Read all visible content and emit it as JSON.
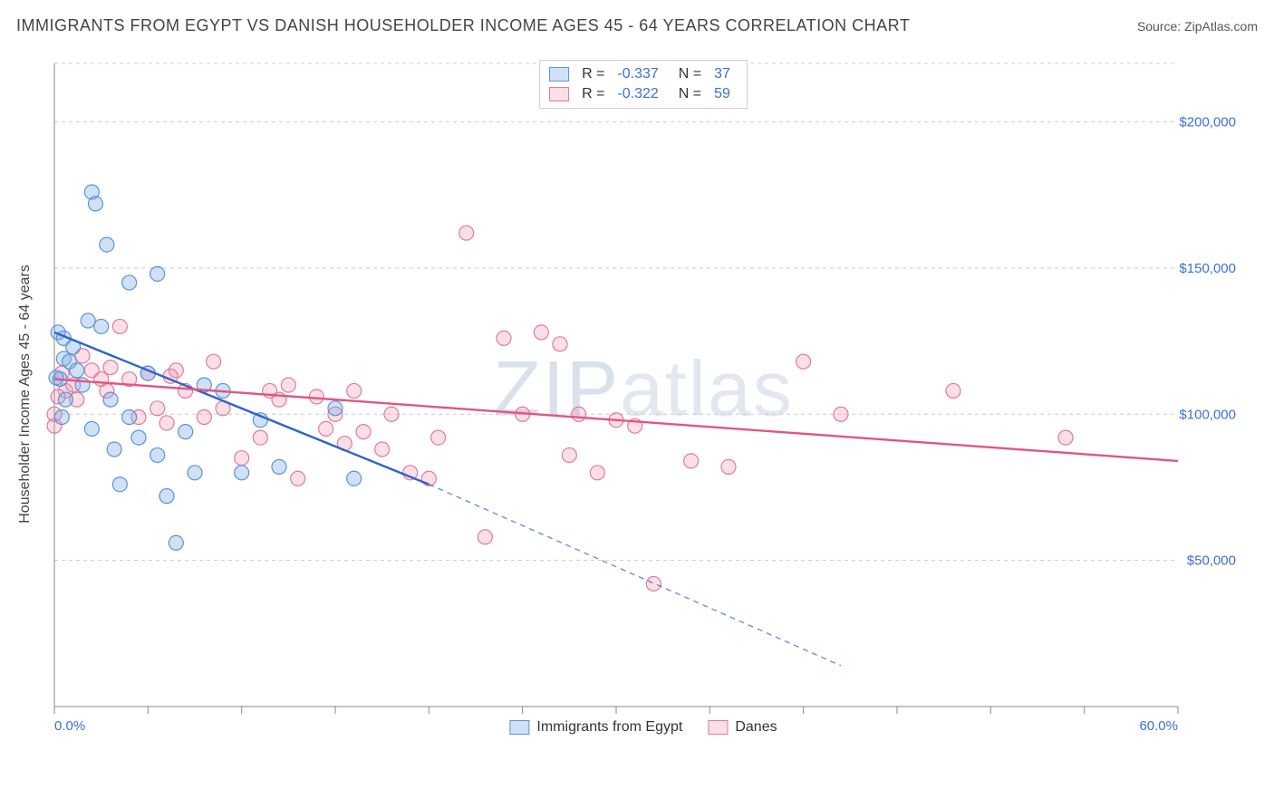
{
  "title": "IMMIGRANTS FROM EGYPT VS DANISH HOUSEHOLDER INCOME AGES 45 - 64 YEARS CORRELATION CHART",
  "source_label": "Source: ",
  "source_name": "ZipAtlas.com",
  "watermark": "ZIPatlas",
  "y_axis_label": "Householder Income Ages 45 - 64 years",
  "chart": {
    "type": "scatter",
    "x_domain": [
      0,
      60
    ],
    "y_domain": [
      0,
      220000
    ],
    "x_ticks_major": [
      0,
      5,
      10,
      15,
      20,
      25,
      30,
      35,
      40,
      45,
      50,
      55,
      60
    ],
    "x_tick_labels": {
      "0": "0.0%",
      "60": "60.0%"
    },
    "y_grid": [
      50000,
      100000,
      150000,
      200000
    ],
    "y_tick_labels": {
      "50000": "$50,000",
      "100000": "$100,000",
      "150000": "$150,000",
      "200000": "$200,000"
    },
    "background_color": "#ffffff",
    "grid_color": "#cccccc",
    "axis_color": "#888888",
    "tick_label_color": "#3b6fd8",
    "marker_radius": 8,
    "marker_stroke_width": 1.2,
    "trend_line_width": 2.4,
    "trend_dash": "6 5",
    "series": [
      {
        "key": "egypt",
        "label": "Immigrants from Egypt",
        "fill": "rgba(120,170,230,0.35)",
        "stroke": "#5a93d8",
        "line_color": "#2f63c9",
        "stats": {
          "R": "-0.337",
          "N": "37"
        },
        "trend": {
          "x1": 0,
          "y1": 128000,
          "x2_solid": 20,
          "y2_solid": 76000,
          "x2": 42,
          "y2": 14000
        },
        "points": [
          [
            0.2,
            128000
          ],
          [
            0.5,
            126000
          ],
          [
            0.5,
            119000
          ],
          [
            0.3,
            112000
          ],
          [
            0.8,
            118000
          ],
          [
            0.6,
            105000
          ],
          [
            0.4,
            99000
          ],
          [
            1.0,
            123000
          ],
          [
            1.2,
            115000
          ],
          [
            1.5,
            110000
          ],
          [
            1.8,
            132000
          ],
          [
            2.0,
            176000
          ],
          [
            2.2,
            172000
          ],
          [
            2.0,
            95000
          ],
          [
            2.5,
            130000
          ],
          [
            3.0,
            105000
          ],
          [
            3.2,
            88000
          ],
          [
            3.5,
            76000
          ],
          [
            4.0,
            145000
          ],
          [
            4.0,
            99000
          ],
          [
            4.5,
            92000
          ],
          [
            5.0,
            114000
          ],
          [
            5.5,
            148000
          ],
          [
            5.5,
            86000
          ],
          [
            6.0,
            72000
          ],
          [
            6.5,
            56000
          ],
          [
            7.0,
            94000
          ],
          [
            7.5,
            80000
          ],
          [
            8.0,
            110000
          ],
          [
            9.0,
            108000
          ],
          [
            10.0,
            80000
          ],
          [
            11.0,
            98000
          ],
          [
            12.0,
            82000
          ],
          [
            15.0,
            102000
          ],
          [
            16.0,
            78000
          ],
          [
            2.8,
            158000
          ],
          [
            0.1,
            112500
          ]
        ]
      },
      {
        "key": "danes",
        "label": "Danes",
        "fill": "rgba(240,150,175,0.30)",
        "stroke": "#e07b9a",
        "line_color": "#e25582",
        "stats": {
          "R": "-0.322",
          "N": "59"
        },
        "trend": {
          "x1": 0,
          "y1": 112000,
          "x2_solid": 60,
          "y2_solid": 84000,
          "x2": 60,
          "y2": 84000
        },
        "points": [
          [
            0.0,
            100000
          ],
          [
            0.4,
            114000
          ],
          [
            0.6,
            108000
          ],
          [
            1.0,
            110000
          ],
          [
            1.5,
            120000
          ],
          [
            2.0,
            115000
          ],
          [
            2.5,
            112000
          ],
          [
            3.0,
            116000
          ],
          [
            3.5,
            130000
          ],
          [
            4.0,
            112000
          ],
          [
            4.5,
            99000
          ],
          [
            5.0,
            114000
          ],
          [
            5.5,
            102000
          ],
          [
            6.0,
            97000
          ],
          [
            6.5,
            115000
          ],
          [
            7.0,
            108000
          ],
          [
            8.0,
            99000
          ],
          [
            8.5,
            118000
          ],
          [
            9.0,
            102000
          ],
          [
            10.0,
            85000
          ],
          [
            11.0,
            92000
          ],
          [
            11.5,
            108000
          ],
          [
            12.0,
            105000
          ],
          [
            12.5,
            110000
          ],
          [
            13.0,
            78000
          ],
          [
            14.0,
            106000
          ],
          [
            14.5,
            95000
          ],
          [
            15.0,
            100000
          ],
          [
            15.5,
            90000
          ],
          [
            16.0,
            108000
          ],
          [
            16.5,
            94000
          ],
          [
            17.5,
            88000
          ],
          [
            18.0,
            100000
          ],
          [
            19.0,
            80000
          ],
          [
            20.0,
            78000
          ],
          [
            20.5,
            92000
          ],
          [
            22.0,
            162000
          ],
          [
            23.0,
            58000
          ],
          [
            24.0,
            126000
          ],
          [
            25.0,
            100000
          ],
          [
            26.0,
            128000
          ],
          [
            27.0,
            124000
          ],
          [
            27.5,
            86000
          ],
          [
            28.0,
            100000
          ],
          [
            29.0,
            80000
          ],
          [
            30.0,
            98000
          ],
          [
            31.0,
            96000
          ],
          [
            32.0,
            42000
          ],
          [
            34.0,
            84000
          ],
          [
            36.0,
            82000
          ],
          [
            40.0,
            118000
          ],
          [
            42.0,
            100000
          ],
          [
            48.0,
            108000
          ],
          [
            54.0,
            92000
          ],
          [
            0.2,
            106000
          ],
          [
            1.2,
            105000
          ],
          [
            2.8,
            108000
          ],
          [
            6.2,
            113000
          ],
          [
            0.0,
            96000
          ]
        ]
      }
    ],
    "legend_top": {
      "r_label": "R =",
      "n_label": "N ="
    }
  }
}
